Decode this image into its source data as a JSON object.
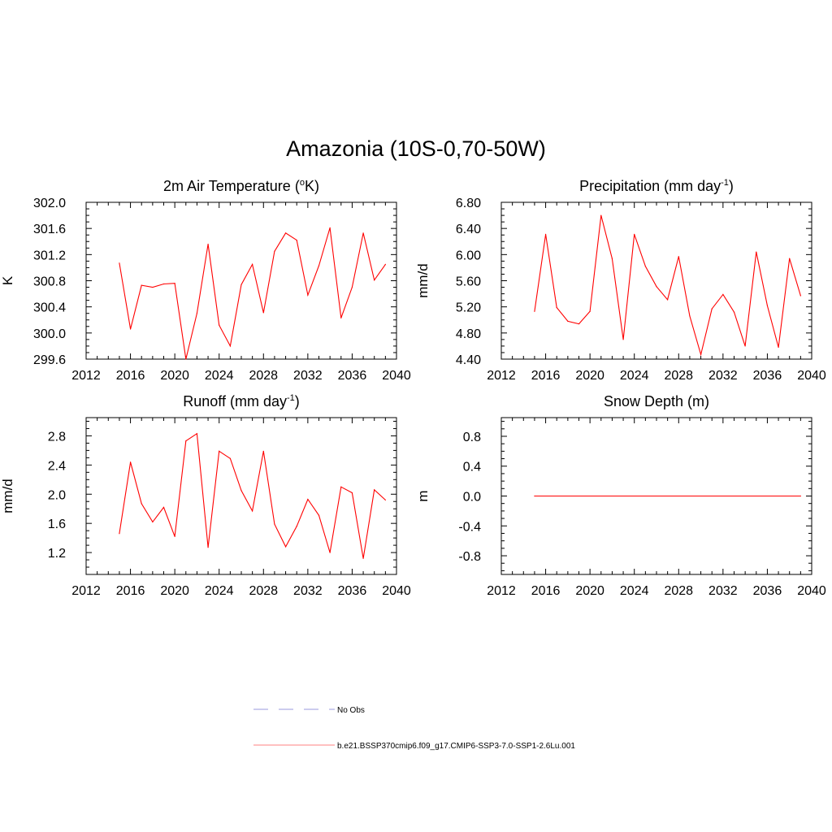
{
  "title": "Amazonia (10S-0,70-50W)",
  "chart_data": [
    {
      "type": "line",
      "title": "2m Air Temperature",
      "title_unit": "(",
      "title_sup": "o",
      "title_tail": "K)",
      "ylabel": "K",
      "xlim": [
        2012,
        2040
      ],
      "x_ticks": [
        2012,
        2016,
        2020,
        2024,
        2028,
        2032,
        2036,
        2040
      ],
      "ylim": [
        299.6,
        302.0
      ],
      "y_ticks": [
        299.6,
        300.0,
        300.4,
        300.8,
        301.2,
        301.6,
        302.0
      ],
      "y_decimals": 1,
      "color": "#ff0000",
      "x": [
        2015,
        2016,
        2017,
        2018,
        2019,
        2020,
        2021,
        2022,
        2023,
        2024,
        2025,
        2026,
        2027,
        2028,
        2029,
        2030,
        2031,
        2032,
        2033,
        2034,
        2035,
        2036,
        2037,
        2038,
        2039
      ],
      "values": [
        301.07,
        300.06,
        300.73,
        300.7,
        300.75,
        300.76,
        299.6,
        300.3,
        301.36,
        300.12,
        299.8,
        300.74,
        301.05,
        300.31,
        301.25,
        301.53,
        301.42,
        300.58,
        301.03,
        301.61,
        300.23,
        300.7,
        301.53,
        300.81,
        301.05
      ]
    },
    {
      "type": "line",
      "title": "Precipitation (mm day",
      "title_sup": "-1",
      "title_tail": ")",
      "ylabel": "mm/d",
      "xlim": [
        2012,
        2040
      ],
      "x_ticks": [
        2012,
        2016,
        2020,
        2024,
        2028,
        2032,
        2036,
        2040
      ],
      "ylim": [
        4.4,
        6.8
      ],
      "y_ticks": [
        4.4,
        4.8,
        5.2,
        5.6,
        6.0,
        6.4,
        6.8
      ],
      "y_decimals": 2,
      "color": "#ff0000",
      "x": [
        2015,
        2016,
        2017,
        2018,
        2019,
        2020,
        2021,
        2022,
        2023,
        2024,
        2025,
        2026,
        2027,
        2028,
        2029,
        2030,
        2031,
        2032,
        2033,
        2034,
        2035,
        2036,
        2037,
        2038,
        2039
      ],
      "values": [
        5.13,
        6.31,
        5.19,
        4.98,
        4.94,
        5.13,
        6.6,
        5.94,
        4.7,
        6.31,
        5.82,
        5.51,
        5.31,
        5.97,
        5.06,
        4.47,
        5.17,
        5.39,
        5.12,
        4.6,
        6.04,
        5.22,
        4.58,
        5.94,
        5.37
      ]
    },
    {
      "type": "line",
      "title": "Runoff (mm day",
      "title_sup": "-1",
      "title_tail": ")",
      "ylabel": "mm/d",
      "xlim": [
        2012,
        2040
      ],
      "x_ticks": [
        2012,
        2016,
        2020,
        2024,
        2028,
        2032,
        2036,
        2040
      ],
      "ylim": [
        0.9,
        3.05
      ],
      "y_ticks": [
        1.2,
        1.6,
        2.0,
        2.4,
        2.8
      ],
      "y_decimals": 1,
      "color": "#ff0000",
      "x": [
        2015,
        2016,
        2017,
        2018,
        2019,
        2020,
        2021,
        2022,
        2023,
        2024,
        2025,
        2026,
        2027,
        2028,
        2029,
        2030,
        2031,
        2032,
        2033,
        2034,
        2035,
        2036,
        2037,
        2038,
        2039
      ],
      "values": [
        1.46,
        2.44,
        1.87,
        1.62,
        1.82,
        1.42,
        2.73,
        2.83,
        1.27,
        2.59,
        2.49,
        2.05,
        1.77,
        2.59,
        1.59,
        1.28,
        1.56,
        1.93,
        1.71,
        1.2,
        2.1,
        2.02,
        1.12,
        2.06,
        1.92
      ]
    },
    {
      "type": "line",
      "title": "Snow Depth (m)",
      "title_sup": "",
      "title_tail": "",
      "ylabel": "m",
      "xlim": [
        2012,
        2040
      ],
      "x_ticks": [
        2012,
        2016,
        2020,
        2024,
        2028,
        2032,
        2036,
        2040
      ],
      "ylim": [
        -1.05,
        1.05
      ],
      "y_ticks": [
        -0.8,
        -0.4,
        0.0,
        0.4,
        0.8
      ],
      "y_decimals": 1,
      "color": "#ff0000",
      "x": [
        2015,
        2039
      ],
      "values": [
        0.0,
        0.0
      ]
    }
  ],
  "legend": [
    {
      "label": "No Obs",
      "color": "#9999dd",
      "dash": "dashed"
    },
    {
      "label": "b.e21.BSSP370cmip6.f09_g17.CMIP6-SSP3-7.0-SSP1-2.6Lu.001",
      "color": "#ff8080",
      "dash": "solid"
    }
  ]
}
